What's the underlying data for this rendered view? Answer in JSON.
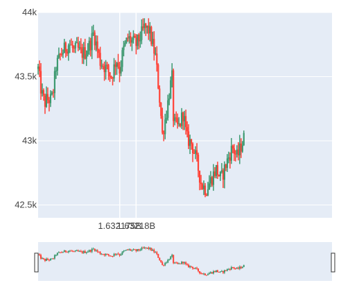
{
  "chart_data": {
    "type": "candlestick",
    "x_range": [
      1632150000.0,
      1632240000.0
    ],
    "ylim": [
      42400,
      44000
    ],
    "y_ticks": [
      {
        "value": 42500,
        "label": "42.5k"
      },
      {
        "value": 43000,
        "label": "43k"
      },
      {
        "value": 43500,
        "label": "43.5k"
      },
      {
        "value": 44000,
        "label": "44k"
      }
    ],
    "x_ticks": [
      {
        "value": 1632175000.0,
        "label": "1.632175B"
      },
      {
        "value": 1632180000.0,
        "label": "1.63218B"
      }
    ],
    "grid": true,
    "rangeslider": true,
    "colors": {
      "increasing": "#3d9970",
      "decreasing": "#ff4136",
      "plot_bg": "#e5ecf6",
      "grid": "#ffffff",
      "slider_handle": "#333333"
    },
    "path": [
      [
        1632150000.0,
        43560
      ],
      [
        1632151000.0,
        43380
      ],
      [
        1632152000.0,
        43290
      ],
      [
        1632152500.0,
        43320
      ],
      [
        1632154000.0,
        43320
      ],
      [
        1632154500.0,
        43360
      ],
      [
        1632155500.0,
        43580
      ],
      [
        1632157000.0,
        43680
      ],
      [
        1632158000.0,
        43710
      ],
      [
        1632159500.0,
        43760
      ],
      [
        1632161000.0,
        43700
      ],
      [
        1632162000.0,
        43720
      ],
      [
        1632163000.0,
        43680
      ],
      [
        1632164500.0,
        43690
      ],
      [
        1632166000.0,
        43760
      ],
      [
        1632167000.0,
        43840
      ],
      [
        1632169000.0,
        43620
      ],
      [
        1632171000.0,
        43560
      ],
      [
        1632172500.0,
        43500
      ],
      [
        1632174000.0,
        43640
      ],
      [
        1632175000.0,
        43550
      ],
      [
        1632176000.0,
        43700
      ],
      [
        1632177500.0,
        43800
      ],
      [
        1632178500.0,
        43780
      ],
      [
        1632180000.0,
        43750
      ],
      [
        1632181500.0,
        43820
      ],
      [
        1632182500.0,
        43880
      ],
      [
        1632184000.0,
        43860
      ],
      [
        1632186000.0,
        43650
      ],
      [
        1632187500.0,
        43250
      ],
      [
        1632188000.0,
        43040
      ],
      [
        1632189500.0,
        43250
      ],
      [
        1632190000.0,
        43350
      ],
      [
        1632191000.0,
        43500
      ],
      [
        1632191500.0,
        43140
      ],
      [
        1632193000.0,
        43100
      ],
      [
        1632194500.0,
        43220
      ],
      [
        1632195500.0,
        43020
      ],
      [
        1632197000.0,
        42980
      ],
      [
        1632198500.0,
        42850
      ],
      [
        1632200000.0,
        42660
      ],
      [
        1632201500.0,
        42620
      ],
      [
        1632203000.0,
        42700
      ],
      [
        1632204500.0,
        42780
      ],
      [
        1632206000.0,
        42700
      ],
      [
        1632208000.0,
        42850
      ],
      [
        1632209500.0,
        42950
      ],
      [
        1632211000.0,
        42870
      ],
      [
        1632212000.0,
        42950
      ],
      [
        1632213000.0,
        43020
      ]
    ]
  }
}
